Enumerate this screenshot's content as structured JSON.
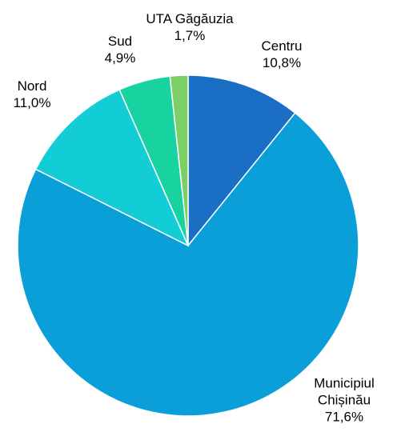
{
  "chart_data": {
    "type": "pie",
    "categories": [
      "Centru",
      "Municipiul Chișinău",
      "Nord",
      "Sud",
      "UTA Găgăuzia"
    ],
    "values": [
      10.8,
      71.6,
      11.0,
      4.9,
      1.7
    ],
    "value_labels": [
      "10,8%",
      "71,6%",
      "11,0%",
      "4,9%",
      "1,7%"
    ],
    "colors": [
      "#1a6ec4",
      "#0a9fd8",
      "#13cdd6",
      "#18d39f",
      "#7ccf66"
    ]
  }
}
